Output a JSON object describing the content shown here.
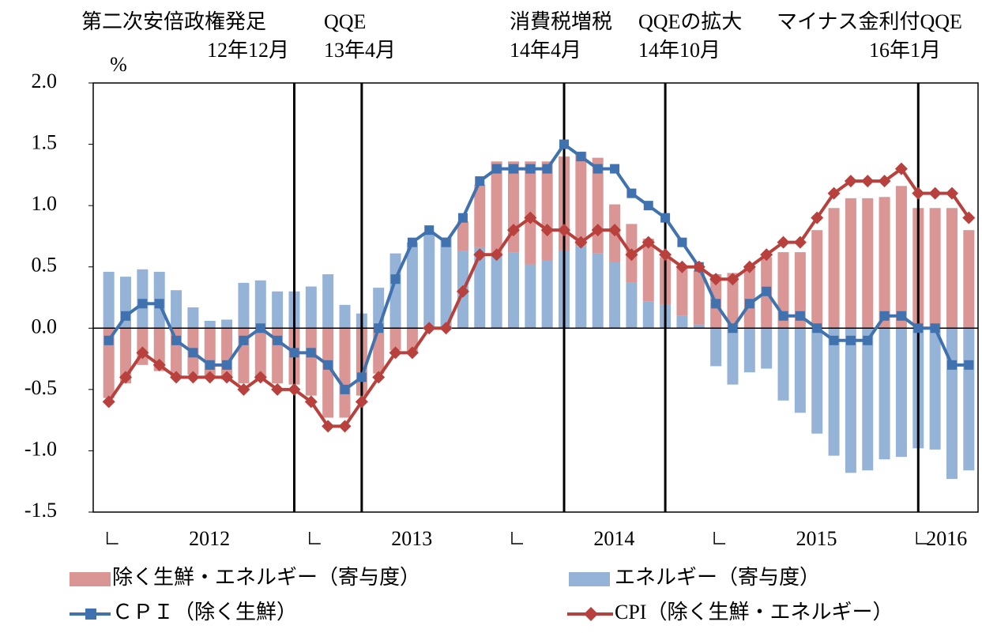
{
  "chart_data": {
    "type": "combo",
    "y_axis_label": "%",
    "year_labels": [
      "2012",
      "2013",
      "2014",
      "2015",
      "2016"
    ],
    "categories": [
      null,
      null,
      null,
      null,
      null,
      null,
      null,
      null,
      null,
      null,
      null,
      null,
      null,
      null,
      null,
      null,
      null,
      null,
      null,
      null,
      null,
      null,
      null,
      null,
      null,
      null,
      null,
      null,
      null,
      null,
      null,
      null,
      null,
      null,
      null,
      null,
      null,
      null,
      null,
      null,
      null,
      null,
      null,
      null,
      null,
      null,
      null,
      null,
      null,
      null,
      null,
      null
    ],
    "ylim": [
      -1.5,
      2.0
    ],
    "yticks": [
      {
        "value": 2.0,
        "label": "2.0"
      },
      {
        "value": 1.5,
        "label": "1.5"
      },
      {
        "value": 1.0,
        "label": "1.0"
      },
      {
        "value": 0.5,
        "label": "0.5"
      },
      {
        "value": 0.0,
        "label": "0.0"
      },
      {
        "value": -0.5,
        "label": "-0.5"
      },
      {
        "value": -1.0,
        "label": "-1.0"
      },
      {
        "value": -1.5,
        "label": "-1.5"
      }
    ],
    "grid": false,
    "series": [
      {
        "name": "除く生鮮・エネルギー（寄与度）",
        "type": "bar",
        "color": "#d99694",
        "values": [
          -0.57,
          -0.45,
          -0.3,
          -0.35,
          -0.4,
          -0.38,
          -0.4,
          -0.42,
          -0.45,
          -0.42,
          -0.45,
          -0.46,
          -0.55,
          -0.73,
          -0.73,
          -0.55,
          -0.37,
          -0.18,
          -0.19,
          0.0,
          0.02,
          0.24,
          0.51,
          0.76,
          0.74,
          0.84,
          0.81,
          0.77,
          0.77,
          0.78,
          0.47,
          0.48,
          0.51,
          0.39,
          0.4,
          0.44,
          0.44,
          0.45,
          0.5,
          0.58,
          0.62,
          0.62,
          0.8,
          0.98,
          1.06,
          1.06,
          1.07,
          1.16,
          0.98,
          0.98,
          0.98,
          0.8
        ]
      },
      {
        "name": "エネルギー（寄与度）",
        "type": "bar",
        "color": "#95b3d7",
        "values": [
          0.46,
          0.42,
          0.48,
          0.46,
          0.31,
          0.17,
          0.06,
          0.07,
          0.37,
          0.39,
          0.3,
          0.3,
          0.34,
          0.44,
          0.19,
          0.12,
          0.33,
          0.61,
          0.7,
          0.78,
          0.72,
          0.63,
          0.66,
          0.6,
          0.62,
          0.52,
          0.55,
          0.63,
          0.67,
          0.61,
          0.54,
          0.37,
          0.22,
          0.19,
          0.1,
          0.03,
          -0.31,
          -0.46,
          -0.36,
          -0.33,
          -0.59,
          -0.69,
          -0.86,
          -1.04,
          -1.18,
          -1.16,
          -1.07,
          -1.05,
          -0.98,
          -0.99,
          -1.23,
          -1.16
        ]
      },
      {
        "name": "ＣＰＩ（除く生鮮）",
        "type": "line",
        "marker": "square",
        "color": "#3f72af",
        "values": [
          -0.1,
          0.1,
          0.2,
          0.2,
          -0.1,
          -0.2,
          -0.3,
          -0.3,
          -0.1,
          0.0,
          -0.1,
          -0.2,
          -0.2,
          -0.3,
          -0.5,
          -0.4,
          0.0,
          0.4,
          0.7,
          0.8,
          0.7,
          0.9,
          1.2,
          1.3,
          1.3,
          1.3,
          1.3,
          1.5,
          1.4,
          1.3,
          1.3,
          1.1,
          1.0,
          0.9,
          0.7,
          0.5,
          0.2,
          0.0,
          0.2,
          0.3,
          0.1,
          0.1,
          0.0,
          -0.1,
          -0.1,
          -0.1,
          0.1,
          0.1,
          0.0,
          0.0,
          -0.3,
          -0.3
        ]
      },
      {
        "name": "CPI（除く生鮮・エネルギー）",
        "type": "line",
        "marker": "diamond",
        "color": "#b8403d",
        "values": [
          -0.6,
          -0.4,
          -0.2,
          -0.3,
          -0.4,
          -0.4,
          -0.4,
          -0.4,
          -0.5,
          -0.4,
          -0.5,
          -0.5,
          -0.6,
          -0.8,
          -0.8,
          -0.6,
          -0.4,
          -0.2,
          -0.2,
          0.0,
          0.0,
          0.3,
          0.6,
          0.6,
          0.8,
          0.9,
          0.8,
          0.8,
          0.7,
          0.8,
          0.8,
          0.6,
          0.7,
          0.6,
          0.5,
          0.5,
          0.4,
          0.4,
          0.5,
          0.6,
          0.7,
          0.7,
          0.9,
          1.1,
          1.2,
          1.2,
          1.2,
          1.3,
          1.1,
          1.1,
          1.1,
          0.9
        ]
      }
    ],
    "annotations": [
      {
        "text": "第二次安倍政権発足",
        "date": "12年12月"
      },
      {
        "text": "QQE",
        "date": "13年4月"
      },
      {
        "text": "消費税増税",
        "date": "14年4月"
      },
      {
        "text": "QQEの拡大",
        "date": "14年10月"
      },
      {
        "text": "マイナス金利付QQE",
        "date": "16年1月"
      }
    ]
  }
}
